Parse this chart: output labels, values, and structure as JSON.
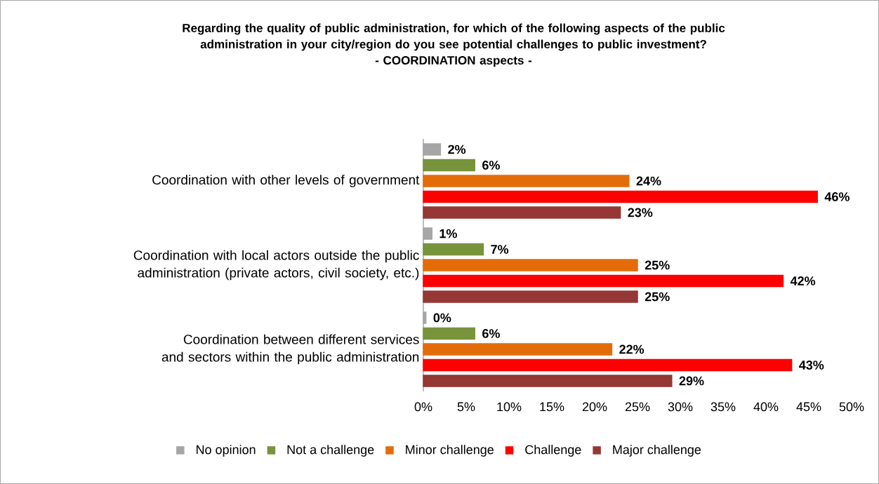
{
  "chart_data": {
    "type": "bar",
    "orientation": "horizontal",
    "title": "Regarding the quality of public administration, for which of the following aspects of the public administration in your city/region do you see potential challenges to public investment?",
    "subtitle": "- COORDINATION aspects -",
    "categories": [
      "Coordination with other levels of government",
      "Coordination with local actors outside the public administration (private actors, civil society, etc.)",
      "Coordination between different services and sectors within the public administration"
    ],
    "series": [
      {
        "name": "No opinion",
        "color": "#a6a6a6",
        "values": [
          2,
          1,
          0.3
        ],
        "value_labels": [
          "2%",
          "1%",
          "0%"
        ]
      },
      {
        "name": "Not a challenge",
        "color": "#77933c",
        "values": [
          6,
          7,
          6
        ],
        "value_labels": [
          "6%",
          "7%",
          "6%"
        ]
      },
      {
        "name": "Minor challenge",
        "color": "#e36c09",
        "values": [
          24,
          25,
          22
        ],
        "value_labels": [
          "24%",
          "25%",
          "22%"
        ]
      },
      {
        "name": "Challenge",
        "color": "#ff0000",
        "values": [
          46,
          42,
          43
        ],
        "value_labels": [
          "46%",
          "42%",
          "43%"
        ]
      },
      {
        "name": "Major challenge",
        "color": "#953735",
        "values": [
          23,
          25,
          29
        ],
        "value_labels": [
          "23%",
          "25%",
          "29%"
        ]
      }
    ],
    "xlim": [
      0,
      50
    ],
    "xticks": [
      {
        "value": 0,
        "label": "0%"
      },
      {
        "value": 5,
        "label": "5%"
      },
      {
        "value": 10,
        "label": "10%"
      },
      {
        "value": 15,
        "label": "15%"
      },
      {
        "value": 20,
        "label": "20%"
      },
      {
        "value": 25,
        "label": "25%"
      },
      {
        "value": 30,
        "label": "30%"
      },
      {
        "value": 35,
        "label": "35%"
      },
      {
        "value": 40,
        "label": "40%"
      },
      {
        "value": 45,
        "label": "45%"
      },
      {
        "value": 50,
        "label": "50%"
      }
    ],
    "legend": "bottom",
    "grid": false
  }
}
